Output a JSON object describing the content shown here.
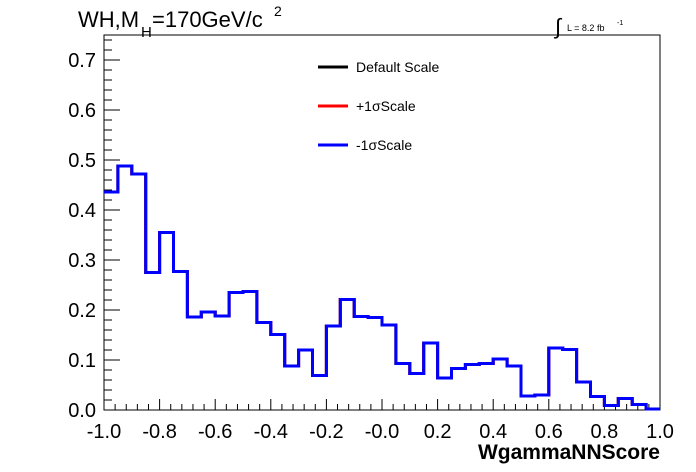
{
  "title": {
    "main": "WH,M",
    "sub": "H",
    "rest": "=170GeV/c",
    "sup": "2"
  },
  "lumi": {
    "symbol": "∫",
    "text": "L = 8.2 fb",
    "sup": "-1"
  },
  "legend": [
    {
      "label": "Default Scale",
      "color": "#000000"
    },
    {
      "label": "+1σScale",
      "color": "#ff0000"
    },
    {
      "label": "-1σScale",
      "color": "#0000ff"
    }
  ],
  "chart_data": {
    "type": "line",
    "xlabel": "WgammaNNScore",
    "ylabel": "",
    "xlim": [
      -1.0,
      1.0
    ],
    "ylim": [
      0,
      0.75
    ],
    "x_ticks": [
      "-1.0",
      "-0.8",
      "-0.6",
      "-0.4",
      "-0.2",
      "-0.0",
      "0.2",
      "0.4",
      "0.6",
      "0.8",
      "1.0"
    ],
    "y_ticks": [
      "0.0",
      "0.1",
      "0.2",
      "0.3",
      "0.4",
      "0.5",
      "0.6",
      "0.7"
    ],
    "bin_edges": [
      -1.0,
      -0.95,
      -0.9,
      -0.85,
      -0.8,
      -0.75,
      -0.7,
      -0.65,
      -0.6,
      -0.55,
      -0.5,
      -0.45,
      -0.4,
      -0.35,
      -0.3,
      -0.25,
      -0.2,
      -0.15,
      -0.1,
      -0.05,
      0.0,
      0.05,
      0.1,
      0.15,
      0.2,
      0.25,
      0.3,
      0.35,
      0.4,
      0.45,
      0.5,
      0.55,
      0.6,
      0.65,
      0.7,
      0.75,
      0.8,
      0.85,
      0.9,
      0.95,
      1.0
    ],
    "series": [
      {
        "name": "Default Scale",
        "color": "#000000",
        "values": [
          0.436,
          0.488,
          0.472,
          0.275,
          0.355,
          0.277,
          0.186,
          0.196,
          0.188,
          0.235,
          0.237,
          0.175,
          0.151,
          0.088,
          0.12,
          0.069,
          0.168,
          0.221,
          0.187,
          0.185,
          0.17,
          0.093,
          0.073,
          0.134,
          0.064,
          0.083,
          0.091,
          0.093,
          0.102,
          0.088,
          0.028,
          0.03,
          0.124,
          0.121,
          0.056,
          0.027,
          0.009,
          0.023,
          0.011,
          0.002
        ]
      },
      {
        "name": "+1σScale",
        "color": "#ff0000",
        "values": [
          0.436,
          0.488,
          0.472,
          0.275,
          0.355,
          0.277,
          0.186,
          0.196,
          0.188,
          0.235,
          0.237,
          0.175,
          0.151,
          0.088,
          0.12,
          0.069,
          0.168,
          0.221,
          0.187,
          0.185,
          0.17,
          0.093,
          0.073,
          0.134,
          0.064,
          0.083,
          0.091,
          0.093,
          0.102,
          0.088,
          0.028,
          0.03,
          0.124,
          0.121,
          0.056,
          0.027,
          0.009,
          0.023,
          0.011,
          0.002
        ]
      },
      {
        "name": "-1σScale",
        "color": "#0000ff",
        "values": [
          0.436,
          0.488,
          0.472,
          0.275,
          0.355,
          0.277,
          0.186,
          0.196,
          0.188,
          0.235,
          0.237,
          0.175,
          0.151,
          0.088,
          0.12,
          0.069,
          0.168,
          0.221,
          0.187,
          0.185,
          0.17,
          0.093,
          0.073,
          0.134,
          0.064,
          0.083,
          0.091,
          0.093,
          0.102,
          0.088,
          0.028,
          0.03,
          0.124,
          0.121,
          0.056,
          0.027,
          0.009,
          0.023,
          0.011,
          0.002
        ]
      }
    ]
  }
}
